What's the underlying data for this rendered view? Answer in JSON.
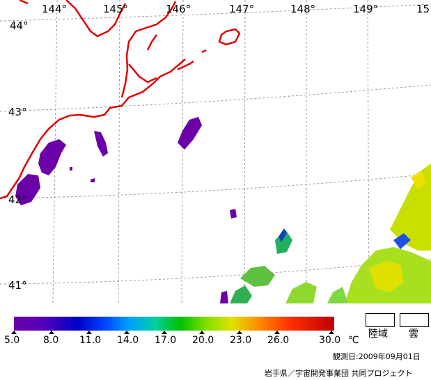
{
  "map": {
    "longitude_labels": [
      "144°",
      "145°",
      "146°",
      "147°",
      "148°",
      "149°",
      "15"
    ],
    "latitude_labels": [
      "44°",
      "43°",
      "42°",
      "41°"
    ],
    "coastline_color": "#e00000",
    "grid_color": "#999999"
  },
  "legend": {
    "ticks": [
      "5.0",
      "8.0",
      "11.0",
      "14.0",
      "17.0",
      "20.0",
      "23.0",
      "26.0",
      "30.0"
    ],
    "unit": "℃",
    "land_label": "陸域",
    "cloud_label": "雲"
  },
  "footer": {
    "date_text": "観測日:2009年09月01日",
    "credit_text": "岩手県／宇宙開発事業団  共同プロジェクト"
  }
}
